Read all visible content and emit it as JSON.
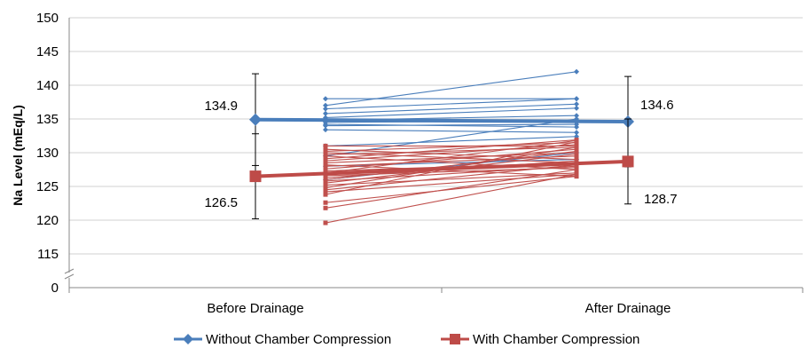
{
  "chart_data": {
    "type": "line",
    "ylabel": "Na Level (mEq/L)",
    "xlabel": "",
    "title": "",
    "categories": [
      "Before Drainage",
      "After Drainage"
    ],
    "y_ticks": [
      150,
      145,
      140,
      135,
      130,
      125,
      120,
      115,
      0
    ],
    "y_axis_break": {
      "from": 0,
      "to": 115
    },
    "grid": true,
    "legend_position": "bottom",
    "series": [
      {
        "name": "Without Chamber Compression",
        "color": "#4a7ebb",
        "marker": "diamond",
        "means": [
          134.9,
          134.6
        ],
        "errors": [
          6.8,
          6.7
        ],
        "mean_labels": [
          "134.9",
          "134.6"
        ]
      },
      {
        "name": "With Chamber Compression",
        "color": "#be4b48",
        "marker": "square",
        "means": [
          126.5,
          128.7
        ],
        "errors": [
          6.3,
          6.3
        ],
        "mean_labels": [
          "126.5",
          "128.7"
        ]
      }
    ],
    "individual_series": [
      {
        "group": "Without Chamber Compression",
        "color": "#4a7ebb",
        "pairs": [
          [
            138.0,
            138.0
          ],
          [
            137.0,
            142.0
          ],
          [
            136.5,
            138.0
          ],
          [
            135.8,
            137.2
          ],
          [
            135.2,
            136.6
          ],
          [
            135.0,
            134.5
          ],
          [
            134.8,
            135.5
          ],
          [
            134.5,
            134.7
          ],
          [
            134.2,
            133.8
          ],
          [
            134.0,
            134.2
          ],
          [
            133.4,
            133.0
          ],
          [
            131.0,
            132.4
          ],
          [
            129.5,
            135.0
          ],
          [
            128.0,
            129.0
          ],
          [
            126.0,
            130.0
          ]
        ]
      },
      {
        "group": "With Chamber Compression",
        "color": "#c0504d",
        "pairs": [
          [
            131.0,
            131.0
          ],
          [
            130.5,
            129.0
          ],
          [
            130.2,
            131.5
          ],
          [
            130.0,
            128.5
          ],
          [
            129.7,
            130.8
          ],
          [
            129.5,
            127.5
          ],
          [
            129.1,
            131.9
          ],
          [
            128.8,
            131.2
          ],
          [
            128.5,
            130.0
          ],
          [
            128.2,
            126.5
          ],
          [
            128.0,
            129.5
          ],
          [
            127.6,
            130.5
          ],
          [
            127.3,
            128.5
          ],
          [
            127.0,
            131.8
          ],
          [
            126.6,
            127.8
          ],
          [
            126.3,
            128.8
          ],
          [
            126.0,
            130.2
          ],
          [
            125.8,
            128.0
          ],
          [
            125.5,
            129.8
          ],
          [
            125.2,
            127.0
          ],
          [
            124.8,
            130.8
          ],
          [
            124.5,
            128.2
          ],
          [
            124.2,
            126.8
          ],
          [
            123.8,
            131.6
          ],
          [
            122.6,
            126.5
          ],
          [
            121.8,
            127.5
          ],
          [
            119.6,
            126.8
          ]
        ]
      }
    ]
  }
}
